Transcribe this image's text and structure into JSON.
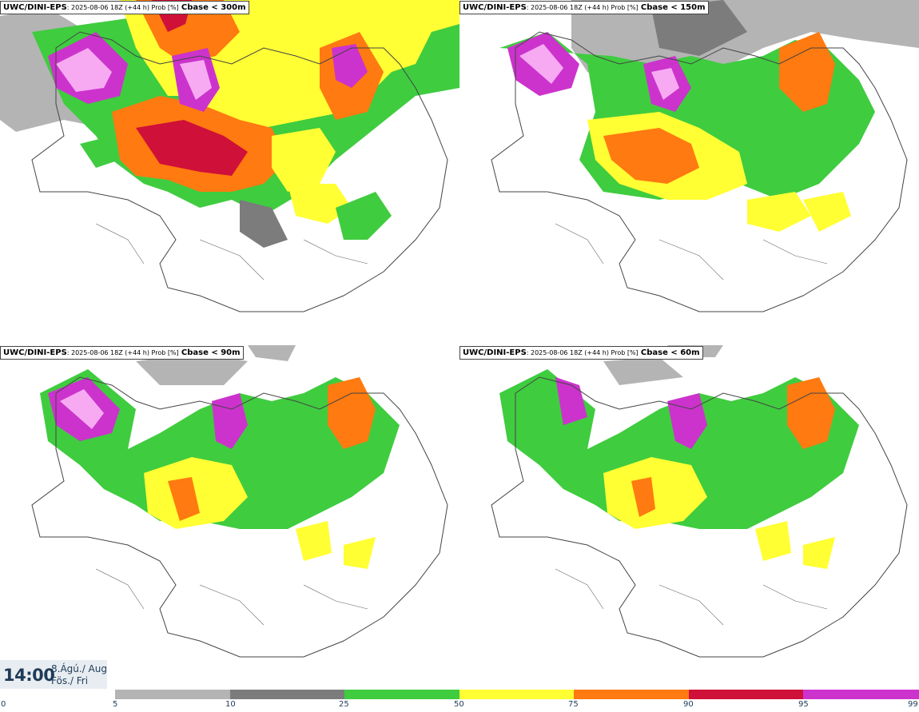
{
  "panels": [
    {
      "model": "UWC/DINI-EPS",
      "meta": ": 2025-08-06 18Z (+44 h) Prob [%]",
      "variable": "Cbase < 300m"
    },
    {
      "model": "UWC/DINI-EPS",
      "meta": ": 2025-08-06 18Z (+44 h) Prob [%]",
      "variable": "Cbase < 150m"
    },
    {
      "model": "UWC/DINI-EPS",
      "meta": ": 2025-08-06 18Z (+44 h) Prob [%]",
      "variable": "Cbase < 90m"
    },
    {
      "model": "UWC/DINI-EPS",
      "meta": ": 2025-08-06 18Z (+44 h) Prob [%]",
      "variable": "Cbase < 60m"
    }
  ],
  "time": "14:00",
  "date_line1": "8.Ágú./ Aug",
  "date_line2": "Fös./ Fri",
  "legend": {
    "ticks": [
      "0",
      "5",
      "10",
      "25",
      "50",
      "75",
      "90",
      "95",
      "99"
    ],
    "colors": [
      "#b4b4b4",
      "#7c7c7c",
      "#3fcc3f",
      "#ffff33",
      "#ff7a10",
      "#cf1038",
      "#cc33cc",
      "#f7aaf2"
    ]
  }
}
